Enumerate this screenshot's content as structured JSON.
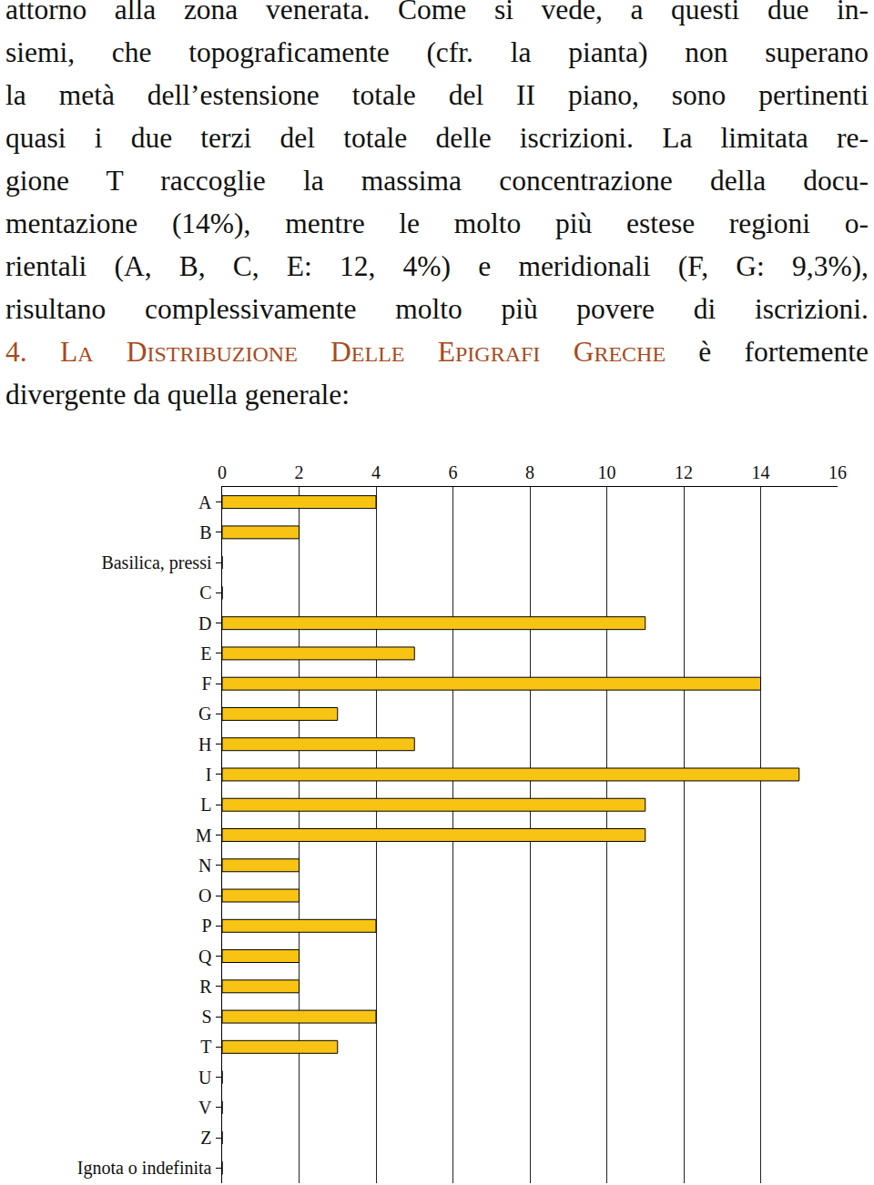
{
  "text": {
    "lines": [
      "attorno alla zona venerata. Come si vede, a questi due in-",
      "siemi, che topograficamente (cfr. la pianta) non superano",
      "la metà dell’estensione totale del II piano, sono pertinenti",
      "quasi i due terzi del totale delle iscrizioni. La limitata re-",
      "gione T raccoglie la massima concentrazione della docu-",
      "mentazione (14%), mentre le molto più estese regioni o-",
      "rientali (A, B, C, E: 12, 4%) e meridionali (F, G: 9,3%),",
      "risultano complessivamente molto più povere di iscrizioni."
    ],
    "heading": {
      "number": "4.",
      "title": "LA DISTRIBUZIONE DELLE EPIGRAFI GRECHE",
      "rest": "è fortemente"
    },
    "after": "divergente da quella generale:"
  },
  "chart_data": {
    "type": "bar",
    "orientation": "horizontal",
    "categories": [
      "A",
      "B",
      "Basilica, pressi",
      "C",
      "D",
      "E",
      "F",
      "G",
      "H",
      "I",
      "L",
      "M",
      "N",
      "O",
      "P",
      "Q",
      "R",
      "S",
      "T",
      "U",
      "V",
      "Z",
      "Ignota o indefinita"
    ],
    "values": [
      4,
      2,
      0,
      0,
      11,
      5,
      14,
      3,
      5,
      15,
      11,
      11,
      2,
      2,
      4,
      2,
      2,
      4,
      3,
      0,
      0,
      0,
      0
    ],
    "color": "#f8c414",
    "xlim": [
      0,
      16
    ],
    "xticks": [
      0,
      2,
      4,
      6,
      8,
      10,
      12,
      14,
      16
    ],
    "grid": true
  }
}
